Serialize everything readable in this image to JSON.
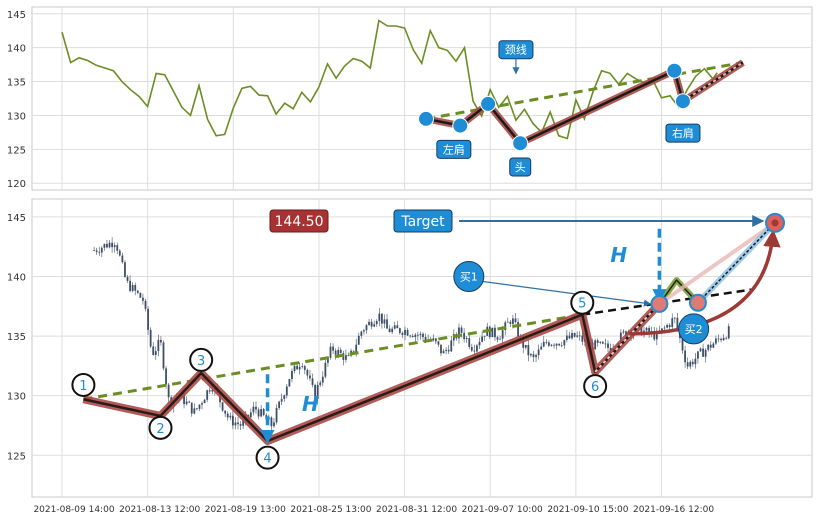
{
  "chart_data": [
    {
      "type": "line",
      "panel": "top",
      "title": "",
      "xlabel": "",
      "ylabel": "",
      "ylim": [
        119,
        146
      ],
      "yticks": [
        120,
        125,
        130,
        135,
        140,
        145
      ],
      "grid": true,
      "series": [
        {
          "name": "",
          "color": "#6b8e23",
          "points": [
            [
              0,
              142.3
            ],
            [
              4,
              137.8
            ],
            [
              8,
              138.5
            ],
            [
              12,
              138.1
            ],
            [
              16,
              137.4
            ],
            [
              20,
              137.0
            ],
            [
              24,
              136.6
            ],
            [
              28,
              135.0
            ],
            [
              32,
              133.8
            ],
            [
              36,
              132.8
            ],
            [
              40,
              131.3
            ],
            [
              44,
              136.2
            ],
            [
              48,
              136.0
            ],
            [
              52,
              133.6
            ],
            [
              56,
              131.2
            ],
            [
              60,
              130.0
            ],
            [
              64,
              134.4
            ],
            [
              68,
              129.4
            ],
            [
              72,
              127.0
            ],
            [
              76,
              127.2
            ],
            [
              80,
              131.1
            ],
            [
              84,
              134.0
            ],
            [
              88,
              134.3
            ],
            [
              92,
              133.0
            ],
            [
              96,
              132.9
            ],
            [
              100,
              130.2
            ],
            [
              104,
              131.8
            ],
            [
              108,
              131.0
            ],
            [
              112,
              133.4
            ],
            [
              116,
              132.0
            ],
            [
              120,
              134.2
            ],
            [
              124,
              137.6
            ],
            [
              128,
              135.5
            ],
            [
              132,
              137.3
            ],
            [
              136,
              138.4
            ],
            [
              140,
              138.0
            ],
            [
              144,
              137.0
            ],
            [
              148,
              144.0
            ],
            [
              152,
              143.2
            ],
            [
              156,
              143.2
            ],
            [
              160,
              142.9
            ],
            [
              164,
              139.7
            ],
            [
              168,
              137.7
            ],
            [
              172,
              142.5
            ],
            [
              176,
              140.0
            ],
            [
              180,
              139.6
            ],
            [
              184,
              138.0
            ],
            [
              188,
              140.0
            ],
            [
              192,
              132.1
            ],
            [
              196,
              129.9
            ],
            [
              200,
              133.8
            ],
            [
              204,
              131.2
            ],
            [
              208,
              132.8
            ],
            [
              212,
              129.3
            ],
            [
              216,
              130.9
            ],
            [
              220,
              128.8
            ],
            [
              224,
              127.5
            ],
            [
              228,
              130.5
            ],
            [
              232,
              127.0
            ],
            [
              236,
              126.6
            ],
            [
              240,
              132.3
            ],
            [
              244,
              129.5
            ],
            [
              248,
              133.5
            ],
            [
              252,
              136.6
            ],
            [
              256,
              136.2
            ],
            [
              260,
              134.6
            ],
            [
              264,
              136.2
            ],
            [
              268,
              135.4
            ],
            [
              272,
              134.8
            ],
            [
              276,
              135.2
            ],
            [
              280,
              132.6
            ],
            [
              284,
              132.9
            ],
            [
              288,
              131.2
            ],
            [
              292,
              133.8
            ],
            [
              296,
              135.8
            ],
            [
              300,
              136.9
            ],
            [
              304,
              135.4
            ],
            [
              306,
              136.3
            ]
          ]
        }
      ],
      "pattern": {
        "neckline": [
          [
            170,
            129.5
          ],
          [
            318,
            137.8
          ]
        ],
        "shoulder_path": [
          [
            170,
            129.5
          ],
          [
            186,
            128.5
          ],
          [
            199,
            131.7
          ],
          [
            214,
            125.9
          ],
          [
            286,
            136.6
          ],
          [
            290,
            132.1
          ],
          [
            318,
            137.8
          ]
        ],
        "nodes": [
          [
            170,
            129.5
          ],
          [
            186,
            128.5
          ],
          [
            199,
            131.7
          ],
          [
            214,
            125.9
          ],
          [
            286,
            136.6
          ],
          [
            290,
            132.1
          ]
        ],
        "labels": [
          {
            "text": "左肩",
            "x": 183,
            "y": 125.0
          },
          {
            "text": "颈线",
            "x": 212,
            "y": 139.7
          },
          {
            "text": "头",
            "x": 214,
            "y": 122.4
          },
          {
            "text": "右肩",
            "x": 290,
            "y": 127.4
          }
        ]
      }
    },
    {
      "type": "candlestick",
      "panel": "bottom",
      "title": "",
      "xlabel": "",
      "ylabel": "",
      "ylim": [
        121.5,
        146.5
      ],
      "yticks": [
        125,
        130,
        135,
        140,
        145
      ],
      "xtick_labels": [
        "2021-08-09 14:00",
        "2021-08-13 12:00",
        "2021-08-19 13:00",
        "2021-08-25 13:00",
        "2021-08-31 12:00",
        "2021-09-07 10:00",
        "2021-09-10 15:00",
        "2021-09-16 12:00"
      ],
      "xtick_positions": [
        0,
        40,
        80,
        120,
        160,
        200,
        240,
        280
      ],
      "grid": true,
      "candle_color": "#3d4f66",
      "close_path": [
        [
          15,
          142.2
        ],
        [
          25,
          143.0
        ],
        [
          30,
          139.5
        ],
        [
          38,
          138.0
        ],
        [
          42,
          133.5
        ],
        [
          46,
          134.5
        ],
        [
          50,
          129.4
        ],
        [
          55,
          130.0
        ],
        [
          62,
          128.6
        ],
        [
          70,
          131.0
        ],
        [
          78,
          128.0
        ],
        [
          84,
          127.5
        ],
        [
          90,
          129.0
        ],
        [
          98,
          127.5
        ],
        [
          106,
          131.5
        ],
        [
          112,
          133.0
        ],
        [
          118,
          130.0
        ],
        [
          126,
          134.0
        ],
        [
          134,
          133.0
        ],
        [
          140,
          135.5
        ],
        [
          148,
          136.8
        ],
        [
          152,
          135.5
        ],
        [
          160,
          135.5
        ],
        [
          168,
          135.0
        ],
        [
          174,
          134.5
        ],
        [
          178,
          133.5
        ],
        [
          186,
          135.5
        ],
        [
          192,
          134.0
        ],
        [
          198,
          135.5
        ],
        [
          204,
          135.0
        ],
        [
          210,
          136.5
        ],
        [
          216,
          134.0
        ],
        [
          220,
          133.0
        ],
        [
          226,
          134.5
        ],
        [
          232,
          134.5
        ],
        [
          240,
          135.0
        ],
        [
          246,
          134.3
        ],
        [
          256,
          134.0
        ],
        [
          264,
          135.5
        ],
        [
          270,
          135.5
        ],
        [
          278,
          135.0
        ],
        [
          286,
          136.5
        ],
        [
          292,
          132.5
        ],
        [
          298,
          133.5
        ],
        [
          305,
          134.5
        ],
        [
          312,
          135.5
        ]
      ],
      "pattern": {
        "neckline": [
          [
            10,
            129.7
          ],
          [
            243,
            136.8
          ]
        ],
        "neckline_extension": [
          [
            243,
            136.8
          ],
          [
            322,
            138.9
          ]
        ],
        "shoulder_path": [
          [
            10,
            129.7
          ],
          [
            46,
            128.3
          ],
          [
            65,
            131.9
          ],
          [
            96,
            126.2
          ],
          [
            243,
            136.8
          ],
          [
            249,
            132.0
          ],
          [
            279,
            137.7
          ]
        ],
        "nodes": [
          {
            "label": "1",
            "x": 10,
            "y": 130.9
          },
          {
            "label": "2",
            "x": 46,
            "y": 127.3
          },
          {
            "label": "3",
            "x": 65,
            "y": 133.0
          },
          {
            "label": "4",
            "x": 96,
            "y": 124.8
          },
          {
            "label": "5",
            "x": 243,
            "y": 137.8
          },
          {
            "label": "6",
            "x": 249,
            "y": 130.8
          }
        ],
        "pullback": [
          [
            279,
            137.7
          ],
          [
            287,
            139.7
          ],
          [
            297,
            137.8
          ]
        ],
        "buy_points": [
          {
            "label": "买1",
            "x": 279,
            "y": 137.7
          },
          {
            "label": "买2",
            "x": 297,
            "y": 137.8
          }
        ],
        "buy_label_markers": [
          {
            "label": "买1",
            "x": 190,
            "y": 140.0
          },
          {
            "label": "买2",
            "x": 295,
            "y": 135.6
          }
        ],
        "target_point": {
          "x": 333,
          "y": 144.5
        },
        "target_label": "Target",
        "target_value_label": "144.50",
        "height_label": "H",
        "height_arrows": [
          {
            "x": 96,
            "from": 131.8,
            "to": 126.2
          },
          {
            "x": 279,
            "from": 144.0,
            "to": 138.0
          }
        ]
      }
    }
  ]
}
